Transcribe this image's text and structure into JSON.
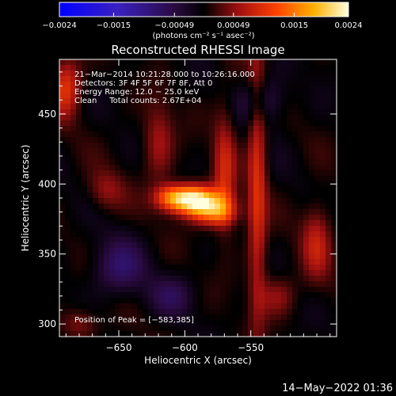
{
  "chart_data": {
    "type": "heatmap",
    "title": "Reconstructed RHESSI Image",
    "xlabel": "Heliocentric X (arcsec)",
    "ylabel": "Heliocentric Y (arcsec)",
    "xlim": [
      -695,
      -485
    ],
    "ylim": [
      291,
      489
    ],
    "x_ticks": [
      -650,
      -600,
      -550
    ],
    "x_tick_labels": [
      "−650",
      "−600",
      "−550"
    ],
    "y_ticks": [
      300,
      350,
      400,
      450
    ],
    "y_tick_labels": [
      "300",
      "350",
      "400",
      "450"
    ],
    "colorbar": {
      "range": [
        -0.0024,
        0.0024
      ],
      "ticks": [
        -0.0024,
        -0.0015,
        -0.00049,
        0.00049,
        0.0015,
        0.0024
      ],
      "tick_labels": [
        "−0.0024",
        "−0.0015",
        "−0.00049",
        "0.00049",
        "0.0015",
        "0.0024"
      ],
      "units_label": "(photons cm⁻² s⁻¹ asec⁻²)",
      "colors": [
        "#0000ff",
        "#5a1a9a",
        "#000000",
        "#c01010",
        "#ff6a00",
        "#ffd000",
        "#ffffe0"
      ]
    },
    "annotations": [
      "21−Mar−2014 10:21:28.000 to 10:26:16.000",
      "Detectors: 3F 4F 5F 6F 7F 8F, Att 0",
      "Energy Range: 12.0 − 25.0 keV",
      "Clean     Total counts: 2.67E+04"
    ],
    "peak_label": "Position of Peak = [−583,385]",
    "peak": [
      -583,
      385
    ],
    "peak_value": 0.0024,
    "footer": "14−May−2022 01:36",
    "sources": [
      {
        "x": -595,
        "y": 389,
        "sx": 14,
        "sy": 7,
        "amp": 0.0024
      },
      {
        "x": -578,
        "y": 380,
        "sx": 12,
        "sy": 7,
        "amp": 0.0013
      },
      {
        "x": -612,
        "y": 391,
        "sx": 8,
        "sy": 6,
        "amp": 0.0006
      },
      {
        "x": -570,
        "y": 410,
        "sx": 6,
        "sy": 30,
        "amp": 0.0008
      },
      {
        "x": -545,
        "y": 400,
        "sx": 5,
        "sy": 70,
        "amp": 0.0009
      },
      {
        "x": -620,
        "y": 430,
        "sx": 8,
        "sy": 20,
        "amp": 0.0006
      },
      {
        "x": -660,
        "y": 395,
        "sx": 10,
        "sy": 10,
        "amp": 0.0005
      },
      {
        "x": -690,
        "y": 470,
        "sx": 8,
        "sy": 15,
        "amp": 0.001
      },
      {
        "x": -500,
        "y": 360,
        "sx": 8,
        "sy": 20,
        "amp": 0.0007
      },
      {
        "x": -650,
        "y": 340,
        "sx": 14,
        "sy": 14,
        "amp": -0.0007
      },
      {
        "x": -540,
        "y": 460,
        "sx": 12,
        "sy": 12,
        "amp": -0.0006
      },
      {
        "x": -610,
        "y": 320,
        "sx": 12,
        "sy": 10,
        "amp": -0.0005
      },
      {
        "x": -530,
        "y": 320,
        "sx": 10,
        "sy": 10,
        "amp": 0.0005
      },
      {
        "x": -680,
        "y": 300,
        "sx": 10,
        "sy": 8,
        "amp": 0.0005
      }
    ]
  }
}
